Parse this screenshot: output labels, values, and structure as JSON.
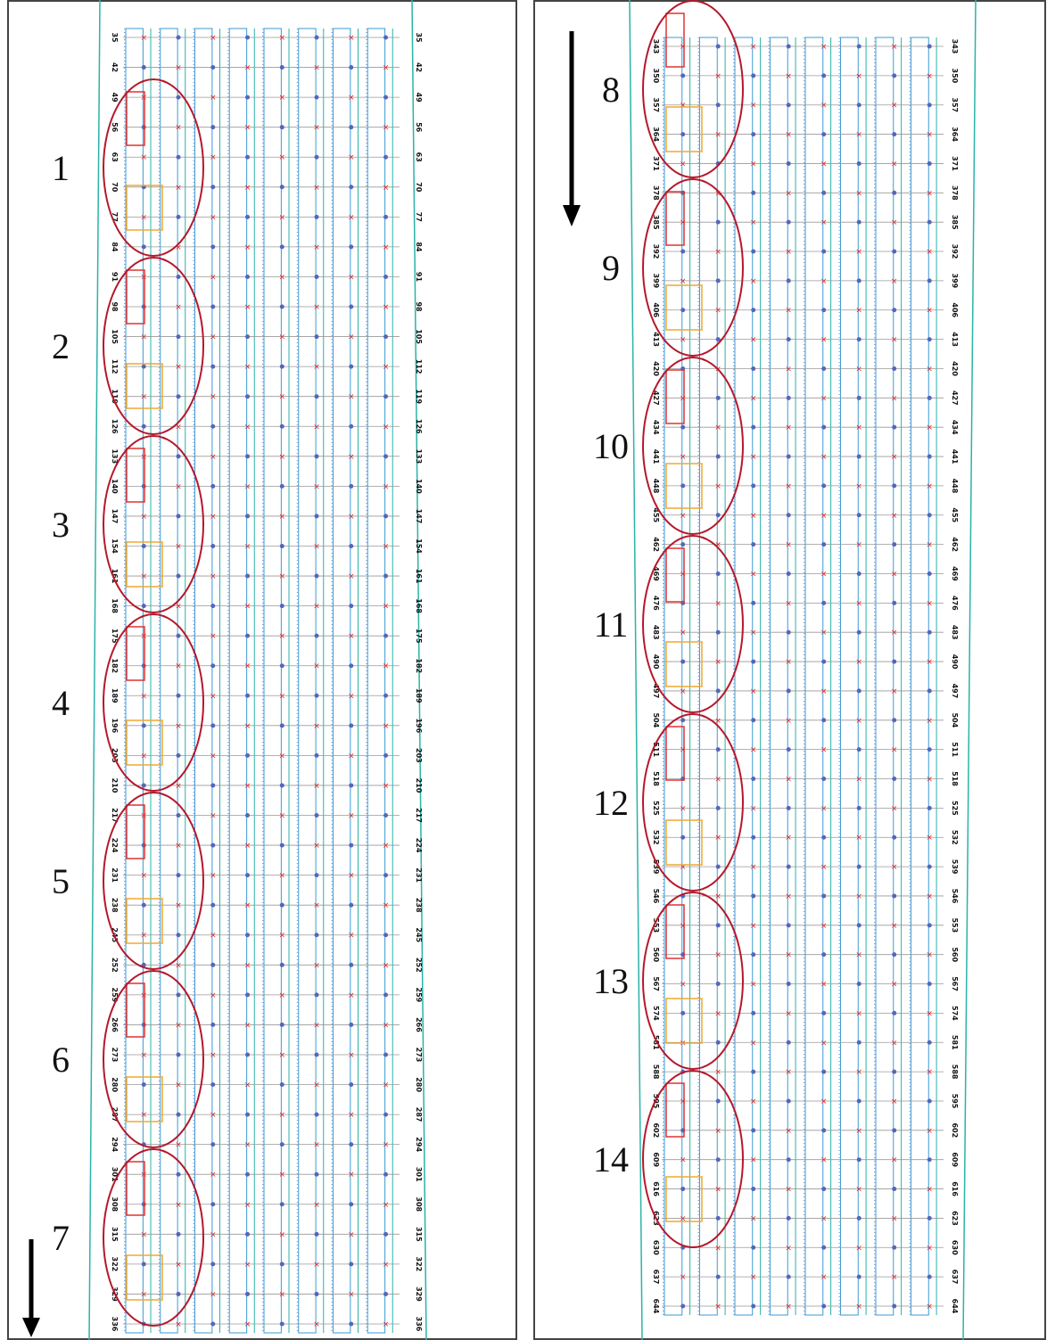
{
  "left_panel": {
    "row_labels": [
      "35",
      "42",
      "49",
      "56",
      "63",
      "70",
      "77",
      "84",
      "91",
      "98",
      "105",
      "112",
      "119",
      "126",
      "133",
      "140",
      "147",
      "154",
      "161",
      "168",
      "175",
      "182",
      "189",
      "196",
      "203",
      "210",
      "217",
      "224",
      "231",
      "238",
      "245",
      "252",
      "259",
      "266",
      "273",
      "280",
      "287",
      "294",
      "301",
      "308",
      "315",
      "322",
      "329",
      "336"
    ],
    "region_labels": [
      "1",
      "2",
      "3",
      "4",
      "5",
      "6",
      "7"
    ]
  },
  "right_panel": {
    "row_labels": [
      "343",
      "350",
      "357",
      "364",
      "371",
      "378",
      "385",
      "392",
      "399",
      "406",
      "413",
      "420",
      "427",
      "434",
      "441",
      "448",
      "455",
      "462",
      "469",
      "476",
      "483",
      "490",
      "497",
      "504",
      "511",
      "518",
      "525",
      "532",
      "539",
      "546",
      "553",
      "560",
      "567",
      "574",
      "581",
      "588",
      "595",
      "602",
      "609",
      "616",
      "623",
      "630",
      "637",
      "644"
    ],
    "region_labels": [
      "8",
      "9",
      "10",
      "11",
      "12",
      "13",
      "14"
    ]
  }
}
